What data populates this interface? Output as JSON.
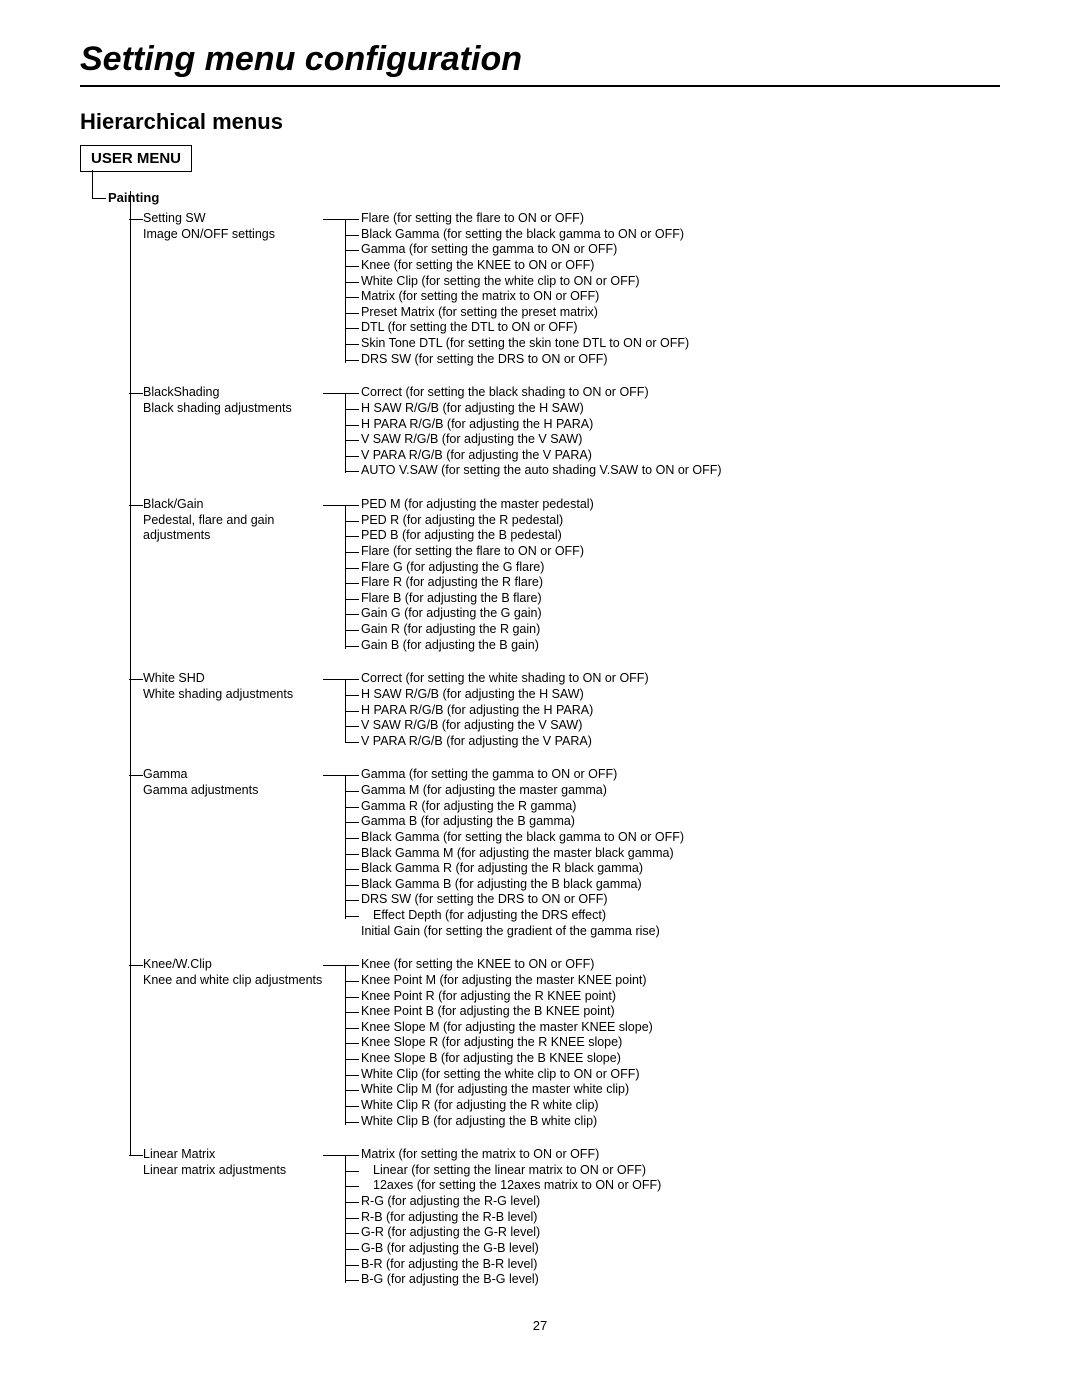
{
  "title": "Setting menu configuration",
  "subtitle": "Hierarchical menus",
  "userMenu": "USER MENU",
  "painting": "Painting",
  "pageNumber": "27",
  "sections": [
    {
      "name": "Setting SW",
      "desc": "Image ON/OFF settings",
      "items": [
        {
          "t": "Flare (for setting the flare to ON or OFF)"
        },
        {
          "t": "Black Gamma (for setting the black gamma to ON or OFF)"
        },
        {
          "t": "Gamma (for setting the gamma to ON or OFF)"
        },
        {
          "t": "Knee (for setting the KNEE to ON or OFF)"
        },
        {
          "t": "White Clip (for setting the white clip to ON or OFF)"
        },
        {
          "t": "Matrix (for setting the matrix to ON or OFF)"
        },
        {
          "t": "Preset Matrix (for setting the preset matrix)"
        },
        {
          "t": "DTL (for setting the DTL to ON or OFF)"
        },
        {
          "t": "Skin Tone DTL (for setting the skin tone DTL to ON or OFF)"
        },
        {
          "t": "DRS SW (for setting the DRS to ON or OFF)"
        }
      ]
    },
    {
      "name": "BlackShading",
      "desc": "Black shading adjustments",
      "items": [
        {
          "t": "Correct (for setting the black shading to ON or OFF)"
        },
        {
          "t": "H SAW R/G/B (for adjusting the H SAW)"
        },
        {
          "t": "H PARA R/G/B (for adjusting the H PARA)"
        },
        {
          "t": "V SAW R/G/B (for adjusting the V SAW)"
        },
        {
          "t": "V PARA R/G/B (for adjusting the V PARA)"
        },
        {
          "t": "AUTO V.SAW (for setting the auto shading V.SAW to ON or OFF)"
        }
      ]
    },
    {
      "name": "Black/Gain",
      "desc": "Pedestal, flare and gain adjustments",
      "items": [
        {
          "t": "PED M (for adjusting the master pedestal)"
        },
        {
          "t": "PED R (for adjusting the R pedestal)"
        },
        {
          "t": "PED B (for adjusting the B pedestal)"
        },
        {
          "t": "Flare (for setting the flare to ON or OFF)"
        },
        {
          "t": "Flare G (for adjusting the G flare)"
        },
        {
          "t": "Flare R (for adjusting the R flare)"
        },
        {
          "t": "Flare B (for adjusting the B flare)"
        },
        {
          "t": "Gain G (for adjusting the G gain)"
        },
        {
          "t": "Gain R (for adjusting the R gain)"
        },
        {
          "t": "Gain B (for adjusting the B gain)"
        }
      ]
    },
    {
      "name": "White SHD",
      "desc": "White shading adjustments",
      "items": [
        {
          "t": "Correct (for setting the white shading to ON or OFF)"
        },
        {
          "t": "H SAW R/G/B (for adjusting the H SAW)"
        },
        {
          "t": "H PARA R/G/B (for adjusting the H PARA)"
        },
        {
          "t": "V SAW R/G/B (for adjusting the V SAW)"
        },
        {
          "t": "V PARA R/G/B (for adjusting the V PARA)"
        }
      ]
    },
    {
      "name": "Gamma",
      "desc": "Gamma adjustments",
      "items": [
        {
          "t": "Gamma (for setting the gamma to ON or OFF)"
        },
        {
          "t": "Gamma M (for adjusting the master gamma)"
        },
        {
          "t": "Gamma R (for adjusting the R gamma)"
        },
        {
          "t": "Gamma B (for adjusting the B gamma)"
        },
        {
          "t": "Black Gamma (for setting the black gamma to ON or OFF)"
        },
        {
          "t": "Black Gamma M (for adjusting the master black gamma)"
        },
        {
          "t": "Black Gamma R (for adjusting the R black gamma)"
        },
        {
          "t": "Black Gamma B (for adjusting the B black gamma)"
        },
        {
          "t": "DRS SW  (for setting the DRS to ON or OFF)"
        },
        {
          "t": "Effect Depth (for adjusting the DRS effect)",
          "indent": 1
        },
        {
          "t": "Initial Gain (for setting the gradient of the gamma rise)",
          "noTick": true
        }
      ]
    },
    {
      "name": "Knee/W.Clip",
      "desc": "Knee and white clip adjustments",
      "items": [
        {
          "t": "Knee (for setting the KNEE to ON or OFF)"
        },
        {
          "t": "Knee Point M (for adjusting the master KNEE point)"
        },
        {
          "t": "Knee Point R (for adjusting the R KNEE point)"
        },
        {
          "t": "Knee Point B (for adjusting the B KNEE point)"
        },
        {
          "t": "Knee Slope M (for adjusting the master KNEE slope)"
        },
        {
          "t": "Knee Slope R (for adjusting the R KNEE slope)"
        },
        {
          "t": "Knee Slope B (for adjusting the B KNEE slope)"
        },
        {
          "t": "White Clip (for setting the white clip to ON or OFF)"
        },
        {
          "t": "White Clip M (for adjusting the master white clip)"
        },
        {
          "t": "White Clip R (for adjusting the R white clip)"
        },
        {
          "t": "White Clip B (for adjusting the B white clip)"
        }
      ]
    },
    {
      "name": "Linear Matrix",
      "desc": "Linear matrix adjustments",
      "items": [
        {
          "t": "Matrix (for setting the matrix to ON or OFF)"
        },
        {
          "t": "Linear (for setting the linear matrix to ON or OFF)",
          "indent": 1
        },
        {
          "t": "12axes (for setting the 12axes matrix to ON or OFF)",
          "indent": 1
        },
        {
          "t": "R-G (for adjusting the R-G level)"
        },
        {
          "t": "R-B (for adjusting the R-B level)"
        },
        {
          "t": "G-R (for adjusting the G-R level)"
        },
        {
          "t": "G-B (for adjusting the G-B level)"
        },
        {
          "t": "B-R (for adjusting the B-R level)"
        },
        {
          "t": "B-G (for adjusting the B-G level)"
        }
      ]
    }
  ]
}
